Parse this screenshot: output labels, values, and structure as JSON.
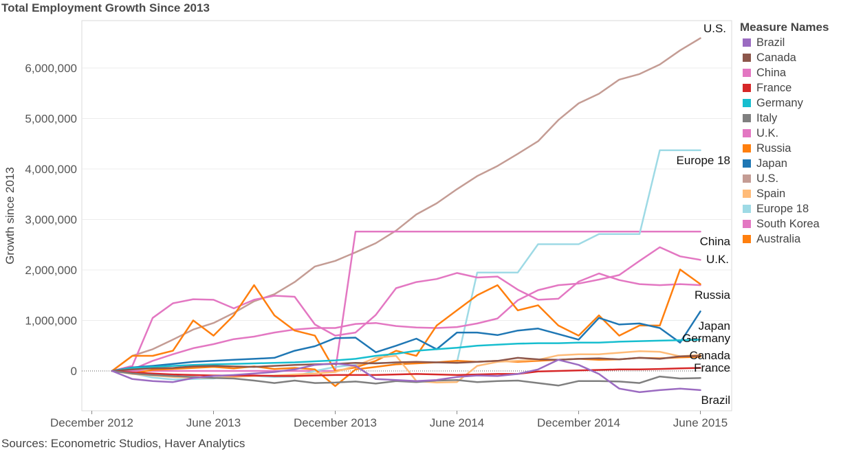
{
  "title": "Total Employment Growth Since 2013",
  "source": "Sources: Econometric Studios, Haver Analytics",
  "legend": {
    "title": "Measure Names",
    "items": [
      {
        "name": "Brazil",
        "color": "#9b6bc1"
      },
      {
        "name": "Canada",
        "color": "#8c564b"
      },
      {
        "name": "China",
        "color": "#e377c2"
      },
      {
        "name": "France",
        "color": "#d62728"
      },
      {
        "name": "Germany",
        "color": "#17becf"
      },
      {
        "name": "Italy",
        "color": "#7f7f7f"
      },
      {
        "name": "U.K.",
        "color": "#e377c2"
      },
      {
        "name": "Russia",
        "color": "#ff7f0e"
      },
      {
        "name": "Japan",
        "color": "#1f77b4"
      },
      {
        "name": "U.S.",
        "color": "#c49c94"
      },
      {
        "name": "Spain",
        "color": "#ffbb78"
      },
      {
        "name": "Europe 18",
        "color": "#9edae5"
      },
      {
        "name": "South Korea",
        "color": "#e377c2"
      },
      {
        "name": "Australia",
        "color": "#ff7f0e"
      }
    ]
  },
  "chart_data": {
    "type": "line",
    "title": "Total Employment Growth Since 2013",
    "ylabel": "Growth since 2013",
    "xlabel": "",
    "x_ticks": [
      "December 2012",
      "June 2013",
      "December 2013",
      "June 2014",
      "December 2014",
      "June 2015"
    ],
    "y_ticks": [
      "0",
      "1,000,000",
      "2,000,000",
      "3,000,000",
      "4,000,000",
      "5,000,000",
      "6,000,000"
    ],
    "ylim": [
      -800000,
      6900000
    ],
    "xlim": [
      "Dec 2012",
      "Jun 2015"
    ],
    "grid": true,
    "legend_position": "right",
    "x": [
      "Jan 2013",
      "Feb 2013",
      "Mar 2013",
      "Apr 2013",
      "May 2013",
      "Jun 2013",
      "Jul 2013",
      "Aug 2013",
      "Sep 2013",
      "Oct 2013",
      "Nov 2013",
      "Dec 2013",
      "Jan 2014",
      "Feb 2014",
      "Mar 2014",
      "Apr 2014",
      "May 2014",
      "Jun 2014",
      "Jul 2014",
      "Aug 2014",
      "Sep 2014",
      "Oct 2014",
      "Nov 2014",
      "Dec 2014",
      "Jan 2015",
      "Feb 2015",
      "Mar 2015",
      "Apr 2015",
      "May 2015",
      "Jun 2015"
    ],
    "series": [
      {
        "name": "U.S.",
        "color": "#c49c94",
        "values": [
          0,
          300000,
          430000,
          620000,
          820000,
          950000,
          1150000,
          1380000,
          1520000,
          1760000,
          2070000,
          2180000,
          2350000,
          2530000,
          2780000,
          3100000,
          3320000,
          3600000,
          3860000,
          4060000,
          4300000,
          4550000,
          4970000,
          5300000,
          5490000,
          5770000,
          5880000,
          6070000,
          6350000,
          6590000
        ],
        "end_label": "U.S."
      },
      {
        "name": "China",
        "color": "#e377c2",
        "values": [
          0,
          0,
          0,
          0,
          0,
          0,
          0,
          0,
          0,
          0,
          0,
          0,
          2760000,
          2760000,
          2760000,
          2760000,
          2760000,
          2760000,
          2760000,
          2760000,
          2760000,
          2760000,
          2760000,
          2760000,
          2760000,
          2760000,
          2760000,
          2760000,
          2760000,
          2760000
        ],
        "end_label": "China"
      },
      {
        "name": "Europe 18",
        "color": "#9edae5",
        "values": [
          0,
          -50000,
          -130000,
          -170000,
          -160000,
          -150000,
          -80000,
          -100000,
          -120000,
          -110000,
          0,
          80000,
          120000,
          160000,
          160000,
          170000,
          170000,
          170000,
          1950000,
          1950000,
          1950000,
          2510000,
          2510000,
          2510000,
          2710000,
          2710000,
          2710000,
          4370000,
          4370000,
          4370000
        ],
        "end_label": "Europe 18"
      },
      {
        "name": "U.K.",
        "color": "#e377c2",
        "values": [
          0,
          30000,
          200000,
          330000,
          450000,
          530000,
          630000,
          680000,
          760000,
          820000,
          850000,
          850000,
          930000,
          950000,
          890000,
          860000,
          850000,
          870000,
          940000,
          1040000,
          1400000,
          1600000,
          1700000,
          1730000,
          1810000,
          1900000,
          2180000,
          2450000,
          2270000,
          2200000
        ],
        "end_label": "U.K."
      },
      {
        "name": "South Korea",
        "color": "#e377c2",
        "values": [
          0,
          100000,
          1050000,
          1340000,
          1420000,
          1410000,
          1240000,
          1410000,
          1490000,
          1470000,
          920000,
          700000,
          760000,
          1110000,
          1640000,
          1760000,
          1820000,
          1940000,
          1850000,
          1870000,
          1610000,
          1410000,
          1430000,
          1770000,
          1930000,
          1800000,
          1720000,
          1700000,
          1720000,
          1700000
        ],
        "end_label": ""
      },
      {
        "name": "Russia",
        "color": "#ff7f0e",
        "values": [
          0,
          300000,
          300000,
          400000,
          1000000,
          700000,
          1100000,
          1700000,
          1100000,
          800000,
          700000,
          0,
          70000,
          200000,
          400000,
          300000,
          900000,
          1200000,
          1500000,
          1700000,
          1200000,
          1300000,
          900000,
          700000,
          1100000,
          700000,
          900000,
          900000,
          2010000,
          1720000
        ],
        "end_label": "Russia"
      },
      {
        "name": "Australia",
        "color": "#ff7f0e",
        "values": [
          0,
          -50000,
          20000,
          40000,
          60000,
          80000,
          50000,
          90000,
          40000,
          60000,
          30000,
          -300000,
          30000,
          80000,
          130000,
          150000,
          170000,
          200000,
          180000,
          200000,
          180000,
          200000,
          220000,
          240000,
          220000,
          230000,
          260000,
          250000,
          270000,
          280000
        ],
        "end_label": ""
      },
      {
        "name": "Japan",
        "color": "#1f77b4",
        "values": [
          0,
          70000,
          100000,
          140000,
          180000,
          200000,
          220000,
          240000,
          260000,
          400000,
          490000,
          650000,
          660000,
          370000,
          500000,
          640000,
          430000,
          760000,
          760000,
          710000,
          800000,
          840000,
          730000,
          620000,
          1050000,
          920000,
          940000,
          850000,
          560000,
          1180000
        ],
        "end_label": "Japan"
      },
      {
        "name": "Germany",
        "color": "#17becf",
        "values": [
          0,
          60000,
          80000,
          100000,
          120000,
          130000,
          140000,
          150000,
          160000,
          170000,
          190000,
          210000,
          240000,
          300000,
          340000,
          400000,
          430000,
          460000,
          500000,
          520000,
          540000,
          550000,
          550000,
          560000,
          560000,
          580000,
          590000,
          600000,
          610000,
          620000
        ],
        "end_label": "Germany"
      },
      {
        "name": "Spain",
        "color": "#ffbb78",
        "values": [
          0,
          -60000,
          -90000,
          -120000,
          -130000,
          -140000,
          -120000,
          -100000,
          -90000,
          -70000,
          -50000,
          -20000,
          100000,
          260000,
          300000,
          -200000,
          -230000,
          -220000,
          100000,
          180000,
          200000,
          220000,
          310000,
          330000,
          330000,
          360000,
          390000,
          380000,
          290000,
          320000
        ],
        "end_label": ""
      },
      {
        "name": "Canada",
        "color": "#8c564b",
        "values": [
          0,
          30000,
          50000,
          60000,
          90000,
          100000,
          90000,
          80000,
          100000,
          120000,
          130000,
          140000,
          160000,
          150000,
          170000,
          180000,
          170000,
          160000,
          180000,
          200000,
          260000,
          230000,
          220000,
          240000,
          250000,
          230000,
          260000,
          240000,
          290000,
          300000
        ],
        "end_label": "Canada"
      },
      {
        "name": "France",
        "color": "#d62728",
        "values": [
          0,
          -30000,
          -50000,
          -70000,
          -80000,
          -90000,
          -90000,
          -90000,
          -100000,
          -100000,
          -90000,
          -80000,
          -80000,
          -80000,
          -70000,
          -60000,
          -70000,
          -80000,
          -70000,
          -60000,
          -60000,
          -10000,
          0,
          10000,
          20000,
          30000,
          30000,
          40000,
          50000,
          60000
        ],
        "end_label": "France"
      },
      {
        "name": "Italy",
        "color": "#7f7f7f",
        "values": [
          0,
          -50000,
          -80000,
          -100000,
          -120000,
          -140000,
          -150000,
          -190000,
          -240000,
          -190000,
          -240000,
          -230000,
          -210000,
          -250000,
          -200000,
          -220000,
          -190000,
          -180000,
          -220000,
          -200000,
          -190000,
          -240000,
          -290000,
          -200000,
          -200000,
          -210000,
          -240000,
          -110000,
          -150000,
          -140000
        ],
        "end_label": ""
      },
      {
        "name": "Brazil",
        "color": "#9b6bc1",
        "values": [
          0,
          -160000,
          -200000,
          -220000,
          -140000,
          -100000,
          -80000,
          -50000,
          -20000,
          30000,
          120000,
          150000,
          100000,
          -160000,
          -180000,
          -200000,
          -180000,
          -120000,
          -90000,
          -100000,
          -60000,
          30000,
          220000,
          120000,
          -60000,
          -350000,
          -420000,
          -380000,
          -350000,
          -380000
        ],
        "end_label": "Brazil"
      }
    ]
  }
}
